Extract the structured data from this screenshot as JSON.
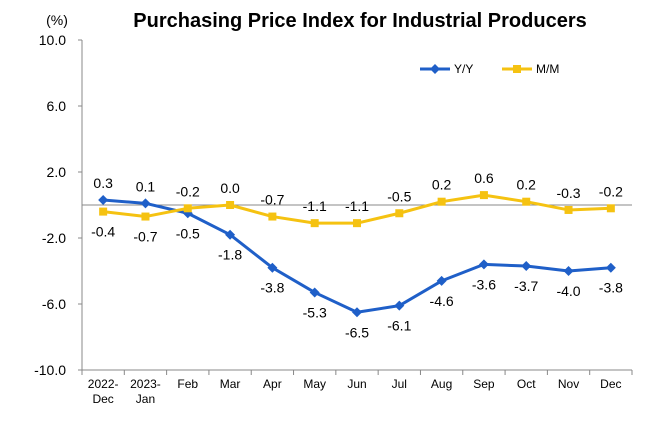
{
  "chart_data": {
    "type": "line",
    "title": "Purchasing Price Index for Industrial Producers",
    "unit_label": "(%)",
    "xlabel": "",
    "ylabel": "",
    "ylim": [
      -10,
      10
    ],
    "yticks": [
      10,
      6,
      2,
      -2,
      -6,
      -10
    ],
    "ytick_labels": [
      "10.0",
      "6.0",
      "2.0",
      "-2.0",
      "-6.0",
      "-10.0"
    ],
    "categories": [
      [
        "2022-",
        "Dec"
      ],
      [
        "2023-",
        "Jan"
      ],
      [
        "Feb"
      ],
      [
        "Mar"
      ],
      [
        "Apr"
      ],
      [
        "May"
      ],
      [
        "Jun"
      ],
      [
        "Jul"
      ],
      [
        "Aug"
      ],
      [
        "Sep"
      ],
      [
        "Oct"
      ],
      [
        "Nov"
      ],
      [
        "Dec"
      ]
    ],
    "grid": false,
    "legend_position": "top-right",
    "series": [
      {
        "name": "Y/Y",
        "color": "#1F5FC8",
        "marker": "diamond",
        "values": [
          0.3,
          0.1,
          -0.5,
          -1.8,
          -3.8,
          -5.3,
          -6.5,
          -6.1,
          -4.6,
          -3.6,
          -3.7,
          -4.0,
          -3.8
        ],
        "labels": [
          "0.3",
          "0.1",
          "-0.5",
          "-1.8",
          "-3.8",
          "-5.3",
          "-6.5",
          "-6.1",
          "-4.6",
          "-3.6",
          "-3.7",
          "-4.0",
          "-3.8"
        ]
      },
      {
        "name": "M/M",
        "color": "#F5C211",
        "marker": "square",
        "values": [
          -0.4,
          -0.7,
          -0.2,
          0.0,
          -0.7,
          -1.1,
          -1.1,
          -0.5,
          0.2,
          0.6,
          0.2,
          -0.3,
          -0.2
        ],
        "labels": [
          "-0.4",
          "-0.7",
          "-0.2",
          "0.0",
          "-0.7",
          "-1.1",
          "-1.1",
          "-0.5",
          "0.2",
          "0.6",
          "0.2",
          "-0.3",
          "-0.2"
        ]
      }
    ]
  }
}
